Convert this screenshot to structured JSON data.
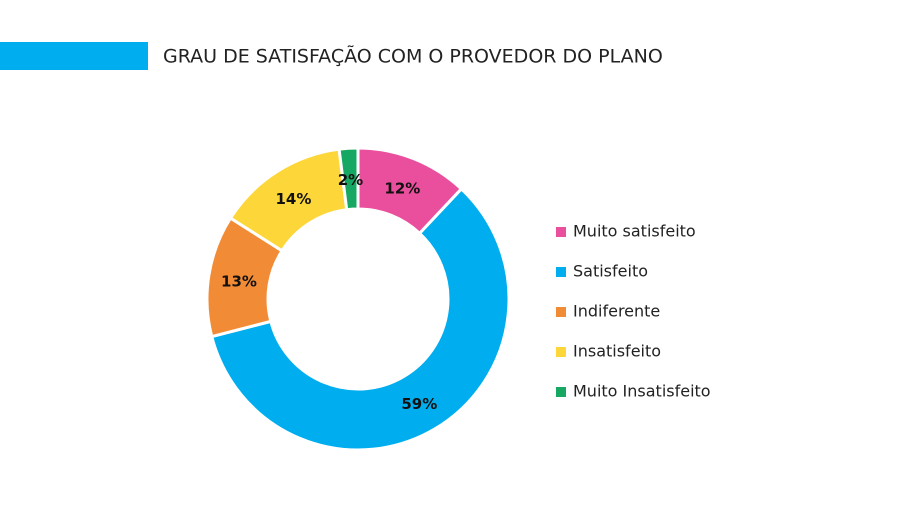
{
  "chart_data": {
    "type": "pie",
    "title": "GRAU DE SATISFAÇÃO COM O PROVEDOR DO PLANO",
    "categories": [
      "Muito satisfeito",
      "Satisfeito",
      "Indiferente",
      "Insatisfeito",
      "Muito Insatisfeito"
    ],
    "values": [
      12,
      59,
      13,
      14,
      2
    ],
    "value_labels": [
      "12%",
      "59%",
      "13%",
      "14%",
      "2%"
    ],
    "colors": [
      "#ea4f9d",
      "#00aeef",
      "#f28b35",
      "#fdd73a",
      "#16a862"
    ],
    "legend": "right"
  }
}
